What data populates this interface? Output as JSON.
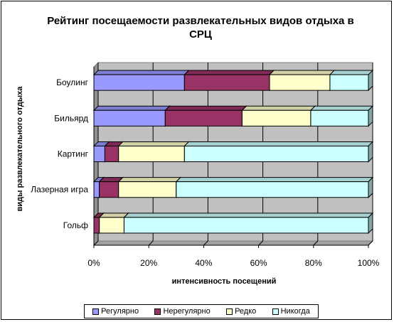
{
  "chart_data": {
    "type": "bar",
    "orientation": "horizontal",
    "stacked": "percent",
    "title": "Рейтинг посещаемости развлекательных видов отдыха в СРЦ",
    "xlabel": "интенсивность посещений",
    "ylabel": "виды развлекательного отдыха",
    "categories": [
      "Боулинг",
      "Бильярд",
      "Картинг",
      "Лазерная игра",
      "Гольф"
    ],
    "series": [
      {
        "name": "Регулярно",
        "color": "#9999ff",
        "values": [
          33,
          26,
          4,
          2,
          0
        ]
      },
      {
        "name": "Нерегулярно",
        "color": "#993366",
        "values": [
          31,
          28,
          5,
          7,
          2
        ]
      },
      {
        "name": "Редко",
        "color": "#ffffcc",
        "values": [
          22,
          25,
          24,
          21,
          9
        ]
      },
      {
        "name": "Никогда",
        "color": "#ccffff",
        "values": [
          14,
          21,
          67,
          70,
          89
        ]
      }
    ],
    "xlim": [
      0,
      100
    ],
    "xticks": [
      "0%",
      "20%",
      "40%",
      "60%",
      "80%",
      "100%"
    ],
    "grid": true,
    "legend_position": "bottom"
  }
}
